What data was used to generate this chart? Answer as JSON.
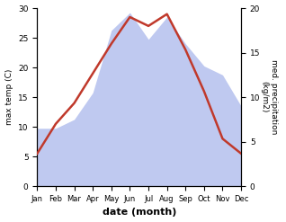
{
  "months": [
    "Jan",
    "Feb",
    "Mar",
    "Apr",
    "May",
    "Jun",
    "Jul",
    "Aug",
    "Sep",
    "Oct",
    "Nov",
    "Dec"
  ],
  "temperature": [
    5.5,
    10.5,
    14.0,
    19.0,
    24.0,
    28.5,
    27.0,
    29.0,
    23.0,
    16.0,
    8.0,
    5.5
  ],
  "precipitation": [
    6.5,
    6.5,
    7.5,
    10.5,
    17.5,
    19.5,
    16.5,
    19.0,
    16.0,
    13.5,
    12.5,
    9.0
  ],
  "temp_ylim": [
    0,
    30
  ],
  "precip_ylim": [
    0,
    20
  ],
  "temp_color": "#c0392b",
  "precip_fill_color": "#bfc9f0",
  "xlabel": "date (month)",
  "ylabel_left": "max temp (C)",
  "ylabel_right": "med. precipitation\n(kg/m2)",
  "fig_width": 3.18,
  "fig_height": 2.47,
  "dpi": 100
}
